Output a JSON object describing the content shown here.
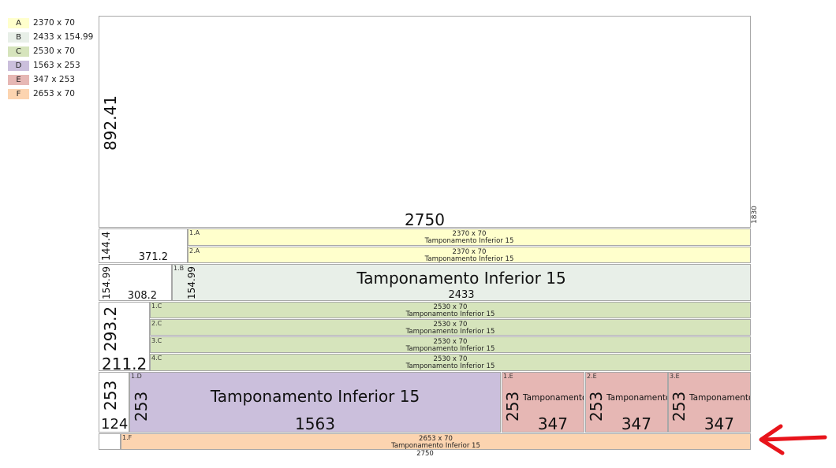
{
  "legend": [
    {
      "code": "A",
      "size": "2370 x 70",
      "color": "#ffffcc"
    },
    {
      "code": "B",
      "size": "2433 x 154.99",
      "color": "#e8efe8"
    },
    {
      "code": "C",
      "size": "2530 x 70",
      "color": "#d6e4bc"
    },
    {
      "code": "D",
      "size": "1563 x 253",
      "color": "#cbbfdc"
    },
    {
      "code": "E",
      "size": "347 x 253",
      "color": "#e6b7b4"
    },
    {
      "code": "F",
      "size": "2653 x 70",
      "color": "#fcd4b0"
    }
  ],
  "board": {
    "offcut_height": "892.41",
    "offcut_width": "2750",
    "total_height": "1830",
    "total_width": "2750"
  },
  "rows": {
    "a": {
      "waste_height": "144.4",
      "waste_width": "371.2",
      "pieces": [
        {
          "tag": "1.A",
          "size": "2370 x 70",
          "name": "Tamponamento Inferior 15"
        },
        {
          "tag": "2.A",
          "size": "2370 x 70",
          "name": "Tamponamento Inferior 15"
        }
      ]
    },
    "b": {
      "waste_height": "154.99",
      "waste_width": "308.2",
      "piece": {
        "tag": "1.B",
        "height": "154.99",
        "name": "Tamponamento Inferior 15",
        "width": "2433"
      }
    },
    "c": {
      "waste_height": "293.2",
      "waste_width": "211.2",
      "pieces": [
        {
          "tag": "1.C",
          "size": "2530 x 70",
          "name": "Tamponamento Inferior 15"
        },
        {
          "tag": "2.C",
          "size": "2530 x 70",
          "name": "Tamponamento Inferior 15"
        },
        {
          "tag": "3.C",
          "size": "2530 x 70",
          "name": "Tamponamento Inferior 15"
        },
        {
          "tag": "4.C",
          "size": "2530 x 70",
          "name": "Tamponamento Inferior 15"
        }
      ]
    },
    "d": {
      "waste_height": "253",
      "waste_width": "124",
      "piece": {
        "tag": "1.D",
        "height": "253",
        "name": "Tamponamento Inferior 15",
        "width": "1563"
      },
      "e_pieces": [
        {
          "tag": "1.E",
          "height": "253",
          "name": "Tamponamento",
          "width": "347"
        },
        {
          "tag": "2.E",
          "height": "253",
          "name": "Tamponamento",
          "width": "347"
        },
        {
          "tag": "3.E",
          "height": "253",
          "name": "Tamponamento",
          "width": "347"
        }
      ]
    },
    "f": {
      "piece": {
        "tag": "1.F",
        "size": "2653 x 70",
        "name": "Tamponamento Inferior 15"
      }
    }
  },
  "icons": {
    "arrow": "red-arrow-left-icon"
  }
}
